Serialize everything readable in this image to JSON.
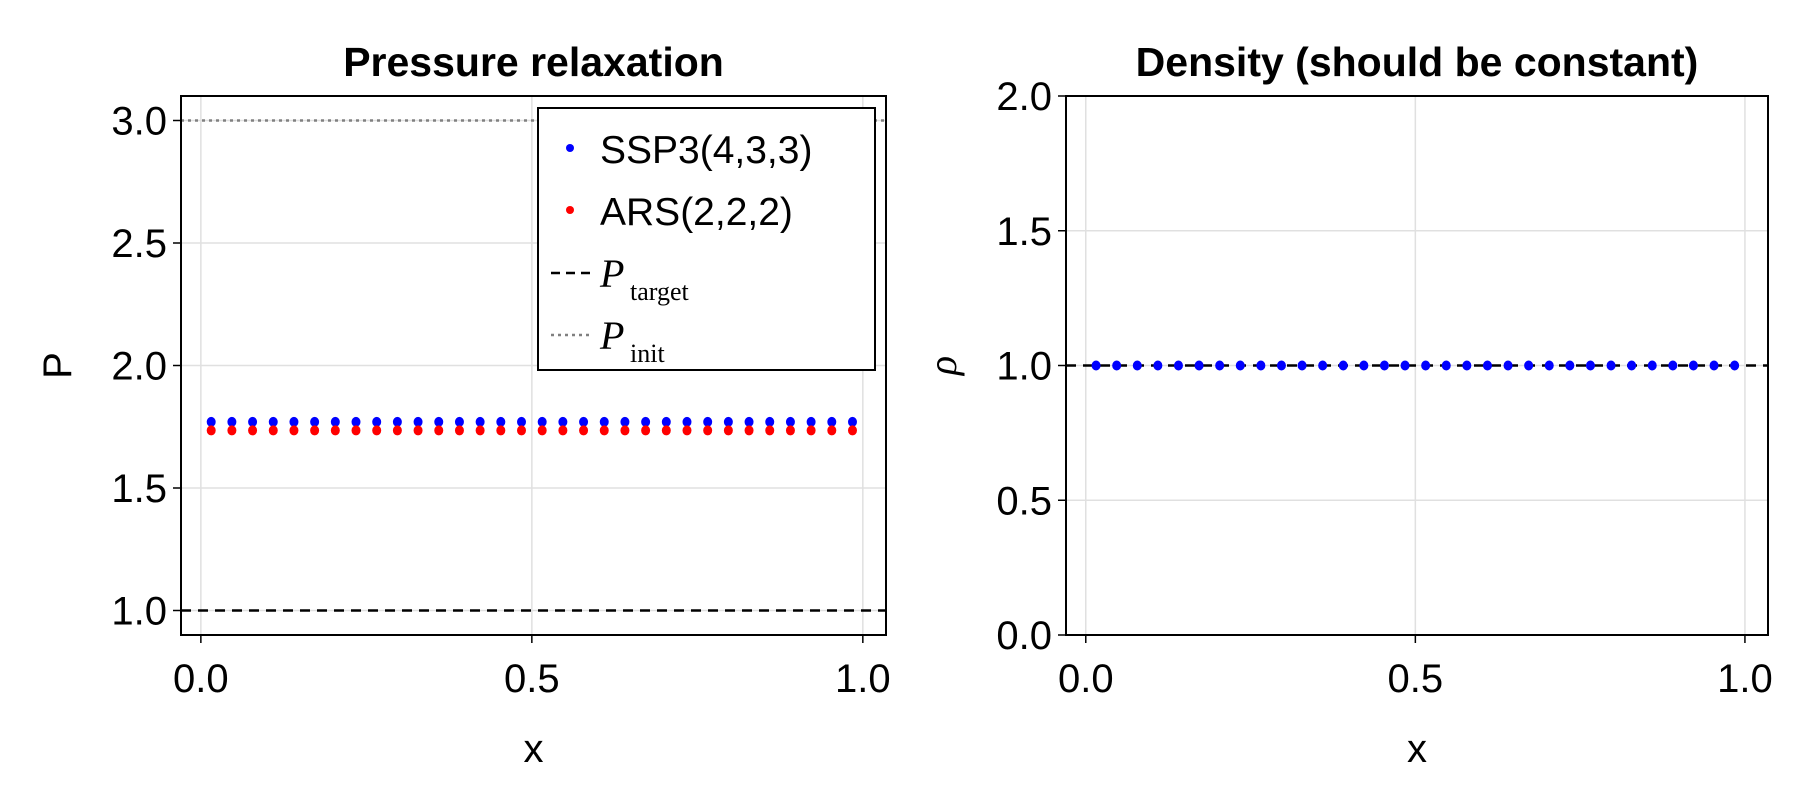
{
  "chart_data": [
    {
      "type": "scatter",
      "title": "Pressure relaxation",
      "xlabel": "x",
      "ylabel": "P",
      "xlim": [
        -0.03,
        1.035
      ],
      "ylim": [
        0.9,
        3.1
      ],
      "xticks": [
        "0.0",
        "0.5",
        "1.0"
      ],
      "yticks": [
        "1.0",
        "1.5",
        "2.0",
        "2.5",
        "3.0"
      ],
      "grid": true,
      "legend_position": "top-right",
      "x": [
        0.015625,
        0.046875,
        0.078125,
        0.109375,
        0.140625,
        0.171875,
        0.203125,
        0.234375,
        0.265625,
        0.296875,
        0.328125,
        0.359375,
        0.390625,
        0.421875,
        0.453125,
        0.484375,
        0.515625,
        0.546875,
        0.578125,
        0.609375,
        0.640625,
        0.671875,
        0.703125,
        0.734375,
        0.765625,
        0.796875,
        0.828125,
        0.859375,
        0.890625,
        0.921875,
        0.953125,
        0.984375
      ],
      "series": [
        {
          "name": "SSP3(4,3,3)",
          "color": "#0000ff",
          "marker": "dot",
          "constant_value": 1.77
        },
        {
          "name": "ARS(2,2,2)",
          "color": "#ff0000",
          "marker": "dot",
          "constant_value": 1.735
        }
      ],
      "reference_lines": [
        {
          "name": "P",
          "subscript": "target",
          "value": 1.0,
          "style": "dashed",
          "color": "#000000"
        },
        {
          "name": "P",
          "subscript": "init",
          "value": 3.0,
          "style": "dotted",
          "color": "#808080"
        }
      ]
    },
    {
      "type": "scatter",
      "title": "Density (should be constant)",
      "xlabel": "x",
      "ylabel": "ρ",
      "xlim": [
        -0.03,
        1.035
      ],
      "ylim": [
        0.0,
        2.0
      ],
      "xticks": [
        "0.0",
        "0.5",
        "1.0"
      ],
      "yticks": [
        "0.0",
        "0.5",
        "1.0",
        "1.5",
        "2.0"
      ],
      "grid": true,
      "series": [
        {
          "color": "#0000ff",
          "marker": "dot",
          "constant_value": 1.0
        }
      ],
      "reference_lines": [
        {
          "value": 1.0,
          "style": "dashed",
          "color": "#000000"
        }
      ]
    }
  ]
}
